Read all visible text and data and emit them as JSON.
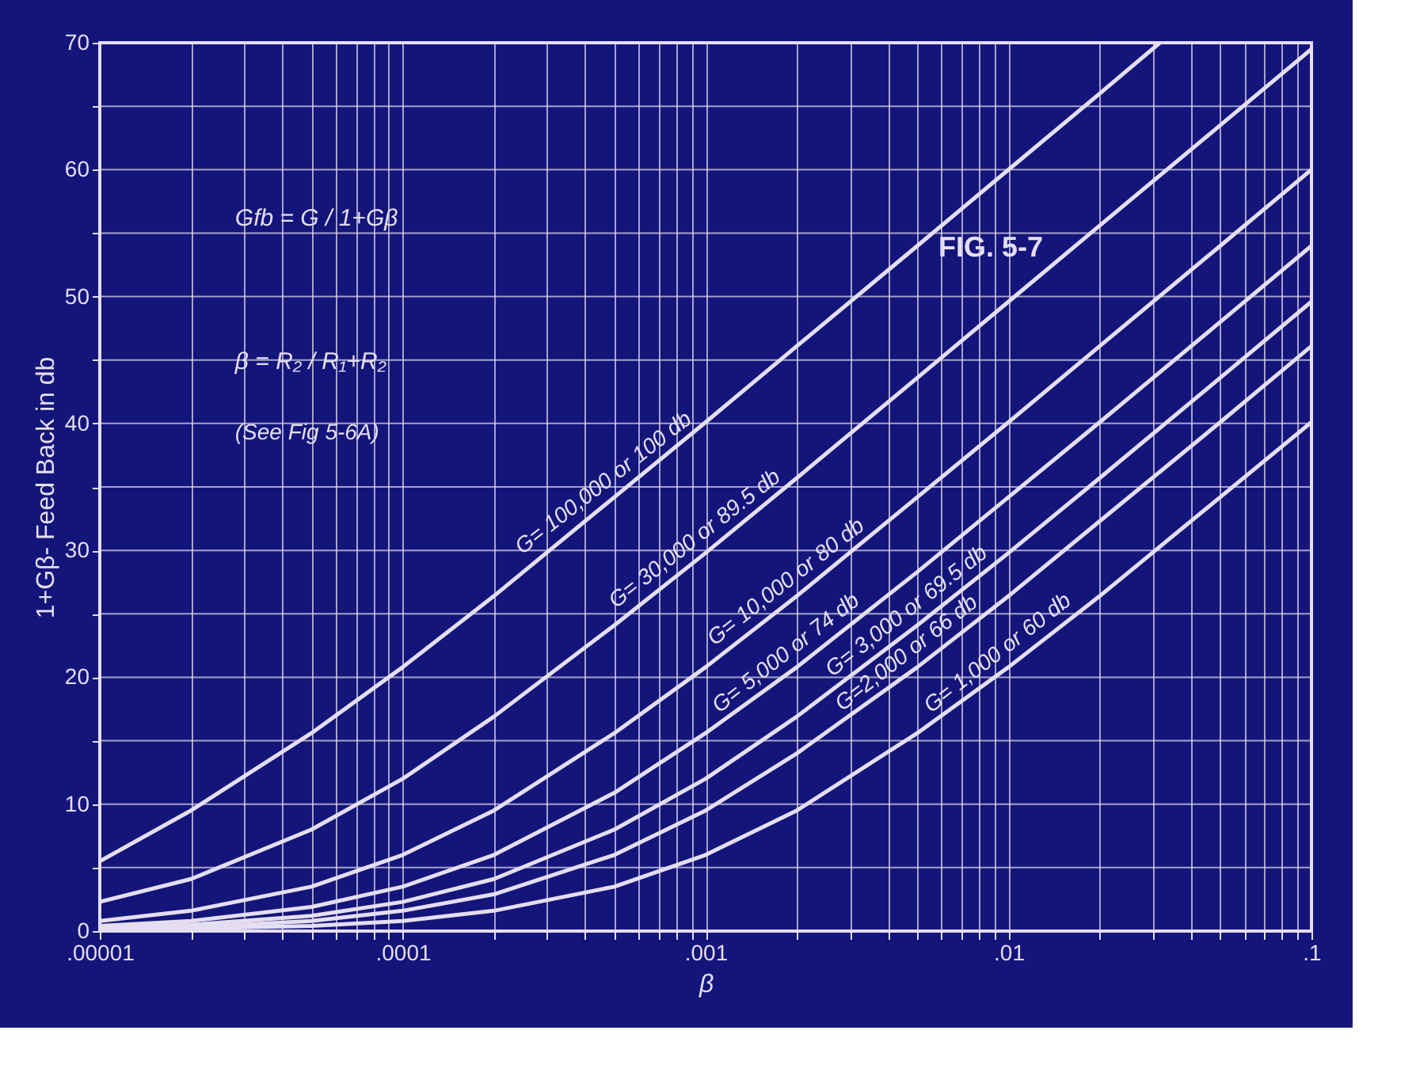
{
  "chart_data": {
    "type": "line",
    "xlabel": "β",
    "ylabel": "1+Gβ- Feed Back in db",
    "log": "x",
    "x": [
      1e-05,
      2e-05,
      5e-05,
      0.0001,
      0.0002,
      0.0005,
      0.001,
      0.002,
      0.005,
      0.01,
      0.02,
      0.05,
      0.1
    ],
    "series": [
      {
        "color": "#e4def0",
        "x": [
          1e-05,
          2e-05,
          5e-05,
          0.0001,
          0.0002,
          0.0005,
          0.001,
          0.002,
          0.005,
          0.01,
          0.02,
          0.0316
        ],
        "values": [
          5.5,
          9.5,
          15.6,
          20.8,
          26.4,
          34.2,
          40.1,
          46.1,
          54.0,
          60.0,
          66.0,
          70.0
        ]
      },
      {
        "color": "#e4def0",
        "values": [
          2.3,
          4.1,
          8.0,
          12.0,
          16.9,
          24.1,
          29.8,
          35.7,
          43.6,
          49.6,
          55.6,
          63.5,
          69.5
        ]
      },
      {
        "color": "#e4def0",
        "values": [
          0.8,
          1.6,
          3.5,
          6.0,
          9.5,
          15.6,
          20.8,
          26.4,
          34.2,
          40.1,
          46.1,
          54.0,
          60.0
        ]
      },
      {
        "color": "#e4def0",
        "values": [
          0.4,
          0.8,
          1.9,
          3.5,
          6.0,
          10.9,
          15.6,
          20.8,
          28.3,
          34.2,
          40.1,
          48.0,
          54.0
        ]
      },
      {
        "color": "#e4def0",
        "values": [
          0.3,
          0.5,
          1.2,
          2.3,
          4.1,
          8.0,
          12.0,
          16.9,
          24.1,
          29.8,
          35.7,
          43.6,
          49.6
        ]
      },
      {
        "color": "#e4def0",
        "values": [
          0.2,
          0.3,
          0.8,
          1.6,
          2.9,
          6.0,
          9.5,
          14.0,
          20.8,
          26.4,
          32.3,
          40.1,
          46.1
        ]
      },
      {
        "color": "#e4def0",
        "values": [
          0.1,
          0.2,
          0.4,
          0.8,
          1.6,
          3.5,
          6.0,
          9.5,
          15.6,
          20.8,
          26.4,
          34.2,
          40.1
        ]
      }
    ],
    "annotations": [
      "FIG. 5-7",
      "Gfb = G / 1+Gβ",
      "β = R₂ / R₁+R₂",
      "(See Fig 5-6A)",
      {
        "text": "G= 100,000 or 100 db",
        "x": 0.0005,
        "y": 34.2
      },
      {
        "text": "G= 30,000 or 89.5 db",
        "x": 0.001,
        "y": 29.8
      },
      {
        "text": "G= 10,000 or 80 db",
        "x": 0.002,
        "y": 26.4
      },
      {
        "text": "G= 5,000 or 74 db",
        "x": 0.002,
        "y": 20.8
      },
      {
        "text": "G= 3,000 or 69.5 db",
        "x": 0.005,
        "y": 24.1
      },
      {
        "text": "G=2,000 or 66 db",
        "x": 0.005,
        "y": 20.8
      },
      {
        "text": "G= 1,000 or 60 db",
        "x": 0.01,
        "y": 20.8
      }
    ],
    "xlim": [
      1e-05,
      0.1
    ],
    "ylim": [
      0,
      70
    ],
    "xticks": [
      {
        "value": 1e-05,
        "label": ".00001"
      },
      {
        "value": 2e-05,
        "label": null
      },
      {
        "value": 3e-05,
        "label": null
      },
      {
        "value": 4e-05,
        "label": null
      },
      {
        "value": 5e-05,
        "label": null
      },
      {
        "value": 6e-05,
        "label": null
      },
      {
        "value": 7e-05,
        "label": null
      },
      {
        "value": 8e-05,
        "label": null
      },
      {
        "value": 9e-05,
        "label": null
      },
      {
        "value": 0.0001,
        "label": ".0001"
      },
      {
        "value": 0.0002,
        "label": null
      },
      {
        "value": 0.0003,
        "label": null
      },
      {
        "value": 0.0004,
        "label": null
      },
      {
        "value": 0.0005,
        "label": null
      },
      {
        "value": 0.0006,
        "label": null
      },
      {
        "value": 0.0007,
        "label": null
      },
      {
        "value": 0.0008,
        "label": null
      },
      {
        "value": 0.0009,
        "label": null
      },
      {
        "value": 0.001,
        "label": ".001"
      },
      {
        "value": 0.002,
        "label": null
      },
      {
        "value": 0.003,
        "label": null
      },
      {
        "value": 0.004,
        "label": null
      },
      {
        "value": 0.005,
        "label": null
      },
      {
        "value": 0.006,
        "label": null
      },
      {
        "value": 0.007,
        "label": null
      },
      {
        "value": 0.008,
        "label": null
      },
      {
        "value": 0.009,
        "label": null
      },
      {
        "value": 0.01,
        "label": ".01"
      },
      {
        "value": 0.02,
        "label": null
      },
      {
        "value": 0.03,
        "label": null
      },
      {
        "value": 0.04,
        "label": null
      },
      {
        "value": 0.05,
        "label": null
      },
      {
        "value": 0.06,
        "label": null
      },
      {
        "value": 0.07,
        "label": null
      },
      {
        "value": 0.08,
        "label": null
      },
      {
        "value": 0.09,
        "label": null
      },
      {
        "value": 0.1,
        "label": ".1"
      }
    ],
    "yticks": [
      0,
      {
        "value": 5,
        "label": null
      },
      10,
      {
        "value": 15,
        "label": null
      },
      20,
      {
        "value": 25,
        "label": null
      },
      30,
      {
        "value": 35,
        "label": null
      },
      40,
      {
        "value": 45,
        "label": null
      },
      50,
      {
        "value": 55,
        "label": null
      },
      60,
      {
        "value": 65,
        "label": null
      },
      70
    ],
    "grid": true,
    "legend": false,
    "marker": "none",
    "line_style": "solid"
  }
}
